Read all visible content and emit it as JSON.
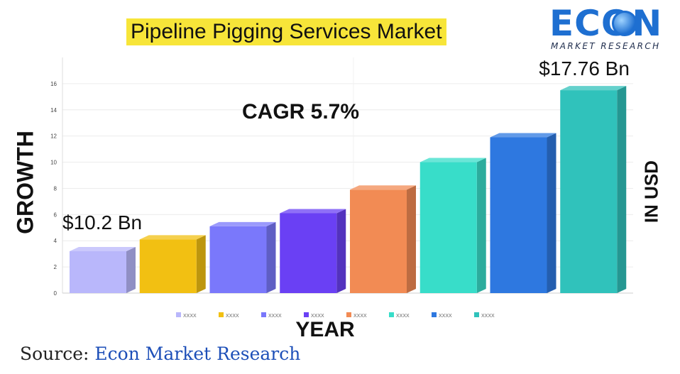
{
  "title": "Pipeline Pigging Services Market",
  "logo": {
    "word": "ECON",
    "subtitle": "MARKET RESEARCH",
    "icon": "globe-chart-icon"
  },
  "source": {
    "prefix": "Source: ",
    "name": "Econ Market Research"
  },
  "chart_data": {
    "type": "bar",
    "title": "Pipeline Pigging Services Market",
    "xlabel": "YEAR",
    "ylabel": "GROWTH",
    "right_label": "IN USD",
    "cagr_label": "CAGR 5.7%",
    "ylim": [
      0,
      18
    ],
    "yticks": [
      0,
      2,
      4,
      6,
      8,
      10,
      12,
      14,
      16
    ],
    "grid": true,
    "legend_position": "bottom",
    "categories": [
      "XXXX",
      "XXXX",
      "XXXX",
      "XXXX",
      "XXXX",
      "XXXX",
      "XXXX",
      "XXXX"
    ],
    "values": [
      3.2,
      4.1,
      5.1,
      6.1,
      7.9,
      10.0,
      11.9,
      15.5
    ],
    "colors": [
      "#b9b7fb",
      "#f2c012",
      "#7a78fb",
      "#6a40f4",
      "#f28b54",
      "#38ddc9",
      "#2e78e0",
      "#30c2bb"
    ],
    "annotations": [
      {
        "text": "$10.2 Bn",
        "bar_index": 0
      },
      {
        "text": "$17.76 Bn",
        "bar_index": 7
      }
    ]
  }
}
